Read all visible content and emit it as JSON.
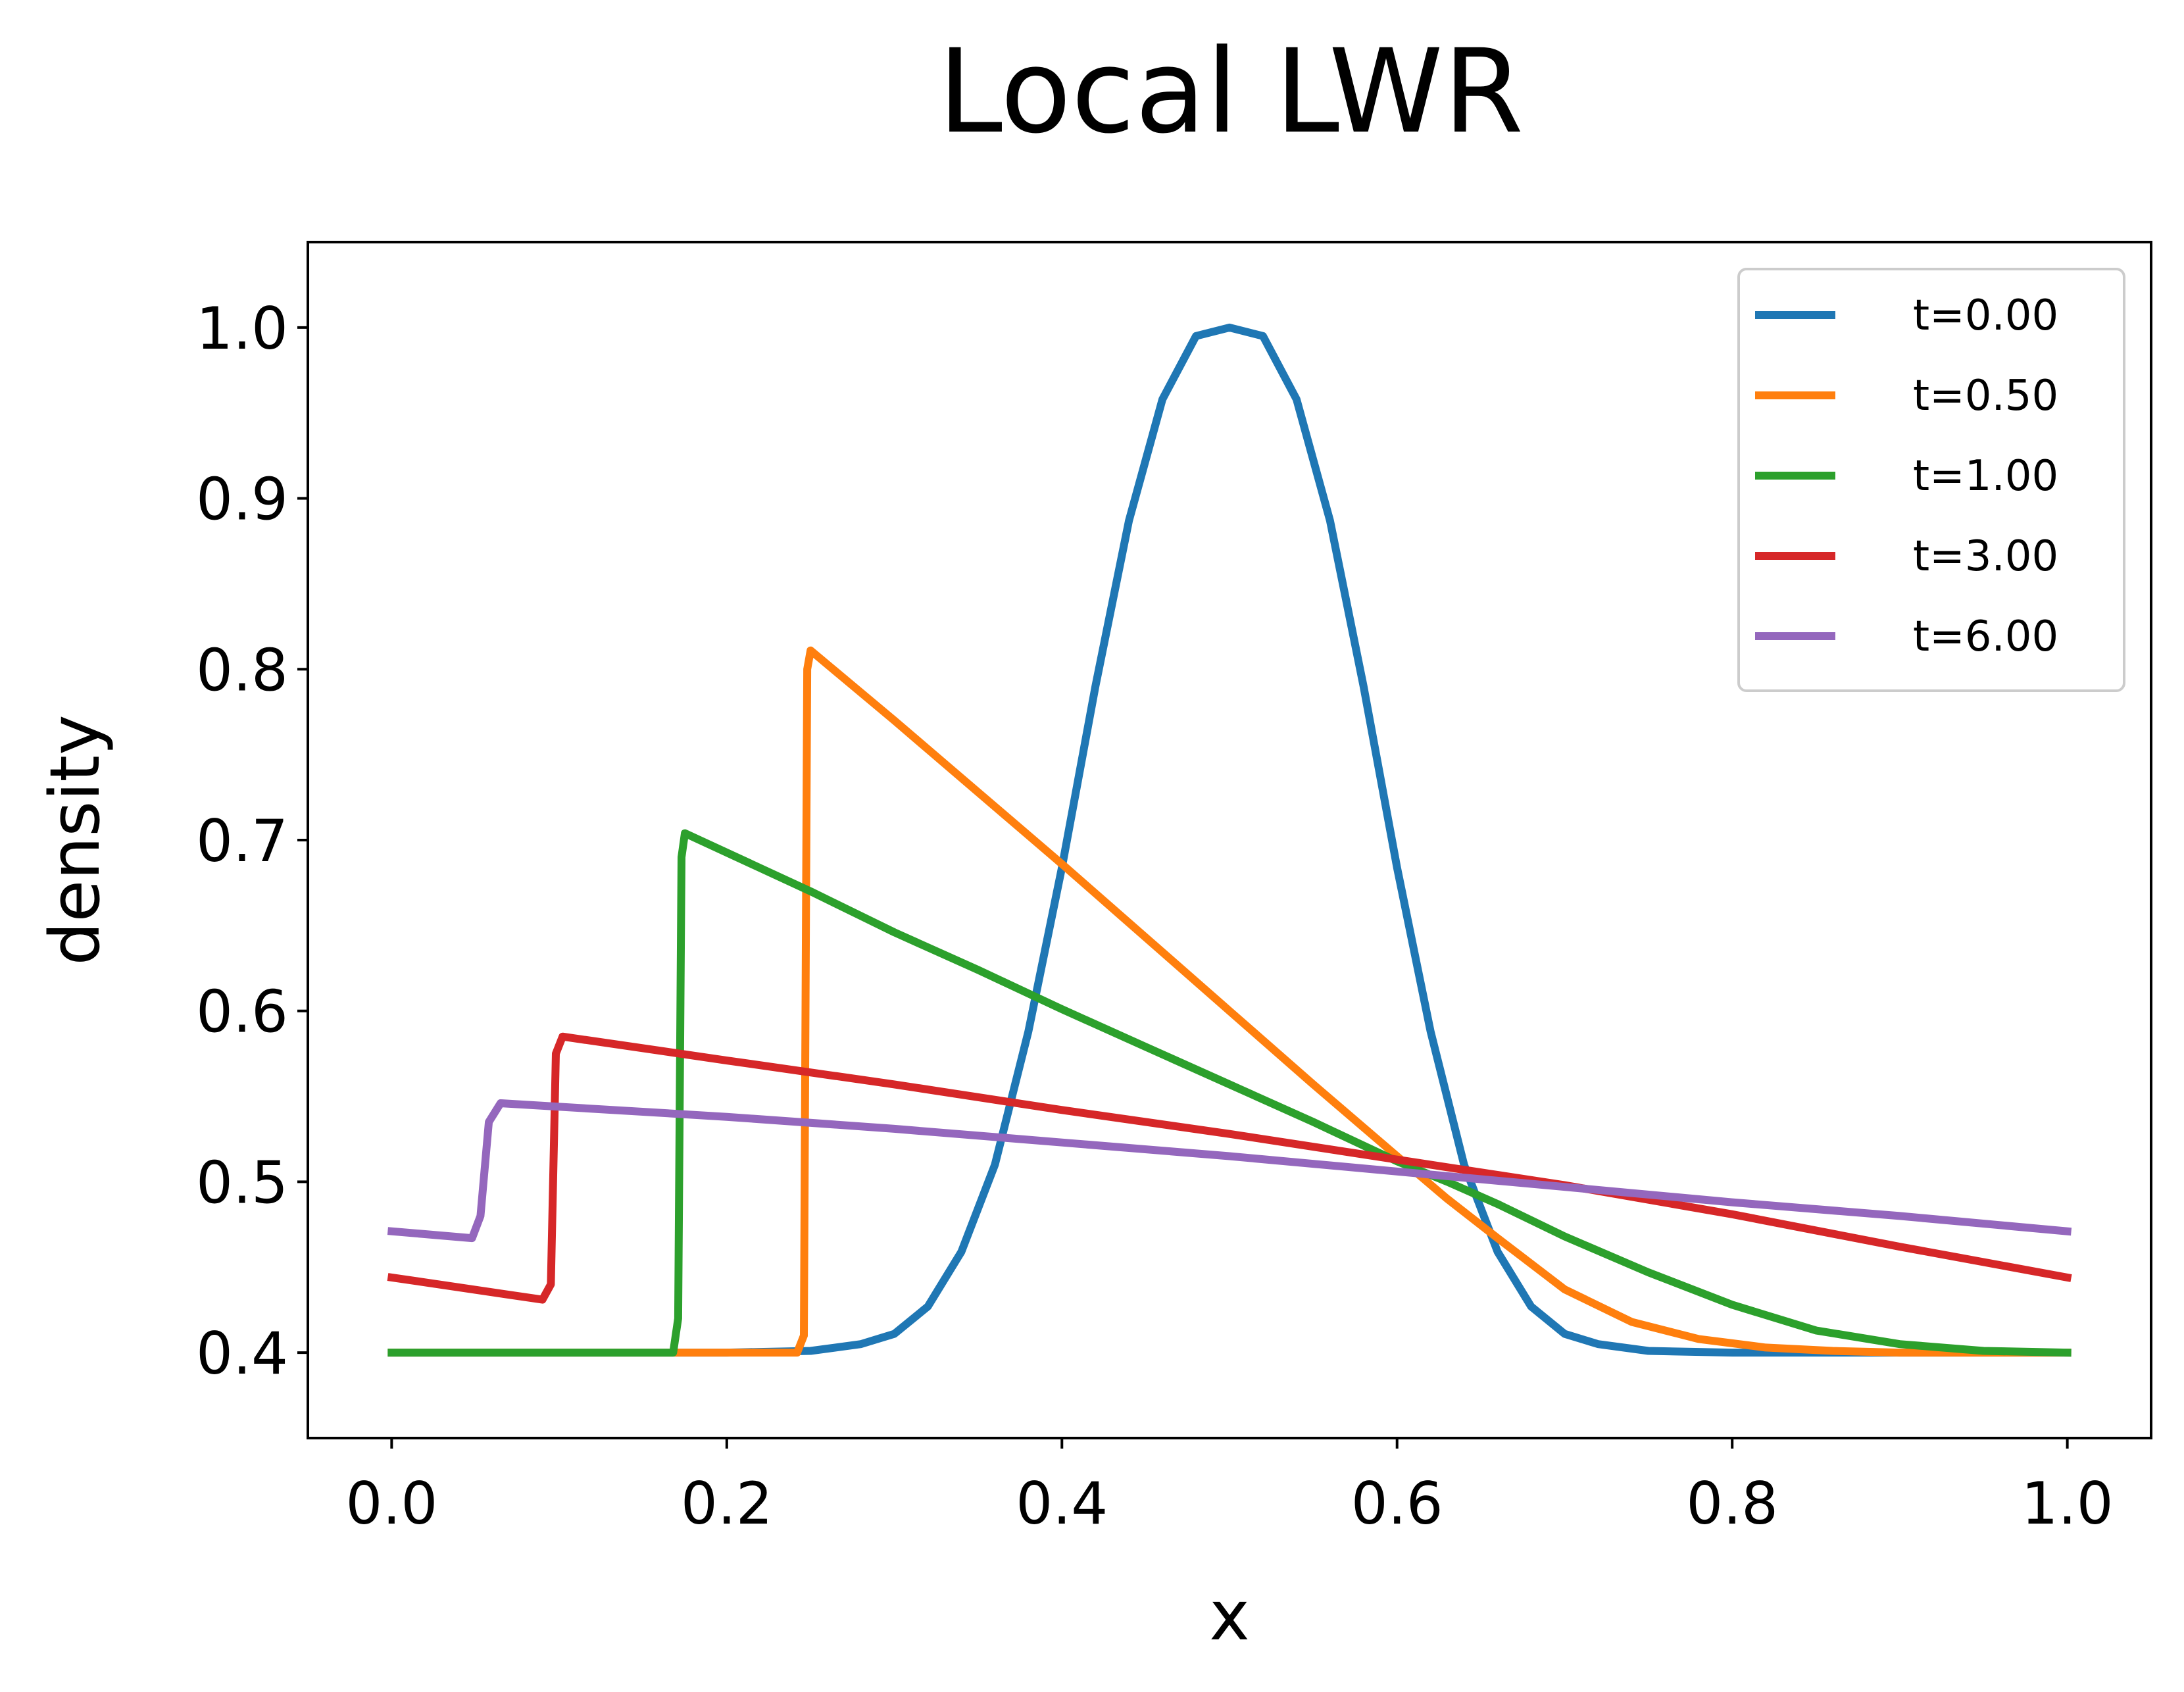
{
  "chart_data": {
    "type": "line",
    "title": "Local LWR",
    "xlabel": "x",
    "ylabel": "density",
    "xlim": [
      -0.05,
      1.05
    ],
    "ylim": [
      0.35,
      1.05
    ],
    "xticks": [
      0.0,
      0.2,
      0.4,
      0.6,
      0.8,
      1.0
    ],
    "xtick_labels": [
      "0.0",
      "0.2",
      "0.4",
      "0.6",
      "0.8",
      "1.0"
    ],
    "yticks": [
      0.4,
      0.5,
      0.6,
      0.7,
      0.8,
      0.9,
      1.0
    ],
    "ytick_labels": [
      "0.4",
      "0.5",
      "0.6",
      "0.7",
      "0.8",
      "0.9",
      "1.0"
    ],
    "grid": false,
    "legend_position": "top-right",
    "series": [
      {
        "name": "t=0.00",
        "color": "#1f77b4",
        "x": [
          0.0,
          0.2,
          0.25,
          0.28,
          0.3,
          0.32,
          0.34,
          0.36,
          0.38,
          0.4,
          0.42,
          0.44,
          0.46,
          0.48,
          0.5,
          0.52,
          0.54,
          0.56,
          0.58,
          0.6,
          0.62,
          0.64,
          0.66,
          0.68,
          0.7,
          0.72,
          0.75,
          0.8,
          1.0
        ],
        "y": [
          0.4,
          0.4,
          0.401,
          0.405,
          0.411,
          0.427,
          0.459,
          0.51,
          0.588,
          0.684,
          0.79,
          0.887,
          0.958,
          0.995,
          1.0,
          0.995,
          0.958,
          0.887,
          0.79,
          0.684,
          0.588,
          0.51,
          0.459,
          0.427,
          0.411,
          0.405,
          0.401,
          0.4,
          0.4
        ]
      },
      {
        "name": "t=0.50",
        "color": "#ff7f0e",
        "x": [
          0.0,
          0.242,
          0.246,
          0.248,
          0.25,
          0.3,
          0.35,
          0.4,
          0.45,
          0.5,
          0.55,
          0.6,
          0.63,
          0.66,
          0.7,
          0.74,
          0.78,
          0.82,
          0.86,
          0.9,
          1.0
        ],
        "y": [
          0.4,
          0.4,
          0.41,
          0.8,
          0.811,
          0.77,
          0.728,
          0.686,
          0.643,
          0.6,
          0.557,
          0.515,
          0.49,
          0.467,
          0.437,
          0.418,
          0.408,
          0.403,
          0.401,
          0.4,
          0.4
        ]
      },
      {
        "name": "t=1.00",
        "color": "#2ca02c",
        "x": [
          0.0,
          0.168,
          0.171,
          0.173,
          0.175,
          0.25,
          0.3,
          0.35,
          0.4,
          0.45,
          0.5,
          0.55,
          0.6,
          0.63,
          0.66,
          0.7,
          0.75,
          0.8,
          0.85,
          0.9,
          0.95,
          1.0
        ],
        "y": [
          0.4,
          0.4,
          0.42,
          0.69,
          0.704,
          0.67,
          0.646,
          0.624,
          0.601,
          0.579,
          0.557,
          0.535,
          0.512,
          0.5,
          0.487,
          0.468,
          0.447,
          0.428,
          0.413,
          0.405,
          0.401,
          0.4
        ]
      },
      {
        "name": "t=3.00",
        "color": "#d62728",
        "x": [
          0.0,
          0.09,
          0.095,
          0.098,
          0.102,
          0.2,
          0.3,
          0.4,
          0.5,
          0.6,
          0.7,
          0.8,
          0.9,
          1.0
        ],
        "y": [
          0.444,
          0.431,
          0.44,
          0.575,
          0.585,
          0.571,
          0.557,
          0.542,
          0.528,
          0.513,
          0.498,
          0.481,
          0.462,
          0.444
        ]
      },
      {
        "name": "t=6.00",
        "color": "#9467bd",
        "x": [
          0.0,
          0.048,
          0.053,
          0.058,
          0.065,
          0.2,
          0.3,
          0.4,
          0.5,
          0.6,
          0.7,
          0.8,
          0.9,
          1.0
        ],
        "y": [
          0.471,
          0.467,
          0.48,
          0.535,
          0.546,
          0.538,
          0.531,
          0.523,
          0.515,
          0.506,
          0.497,
          0.488,
          0.48,
          0.471
        ]
      }
    ]
  }
}
